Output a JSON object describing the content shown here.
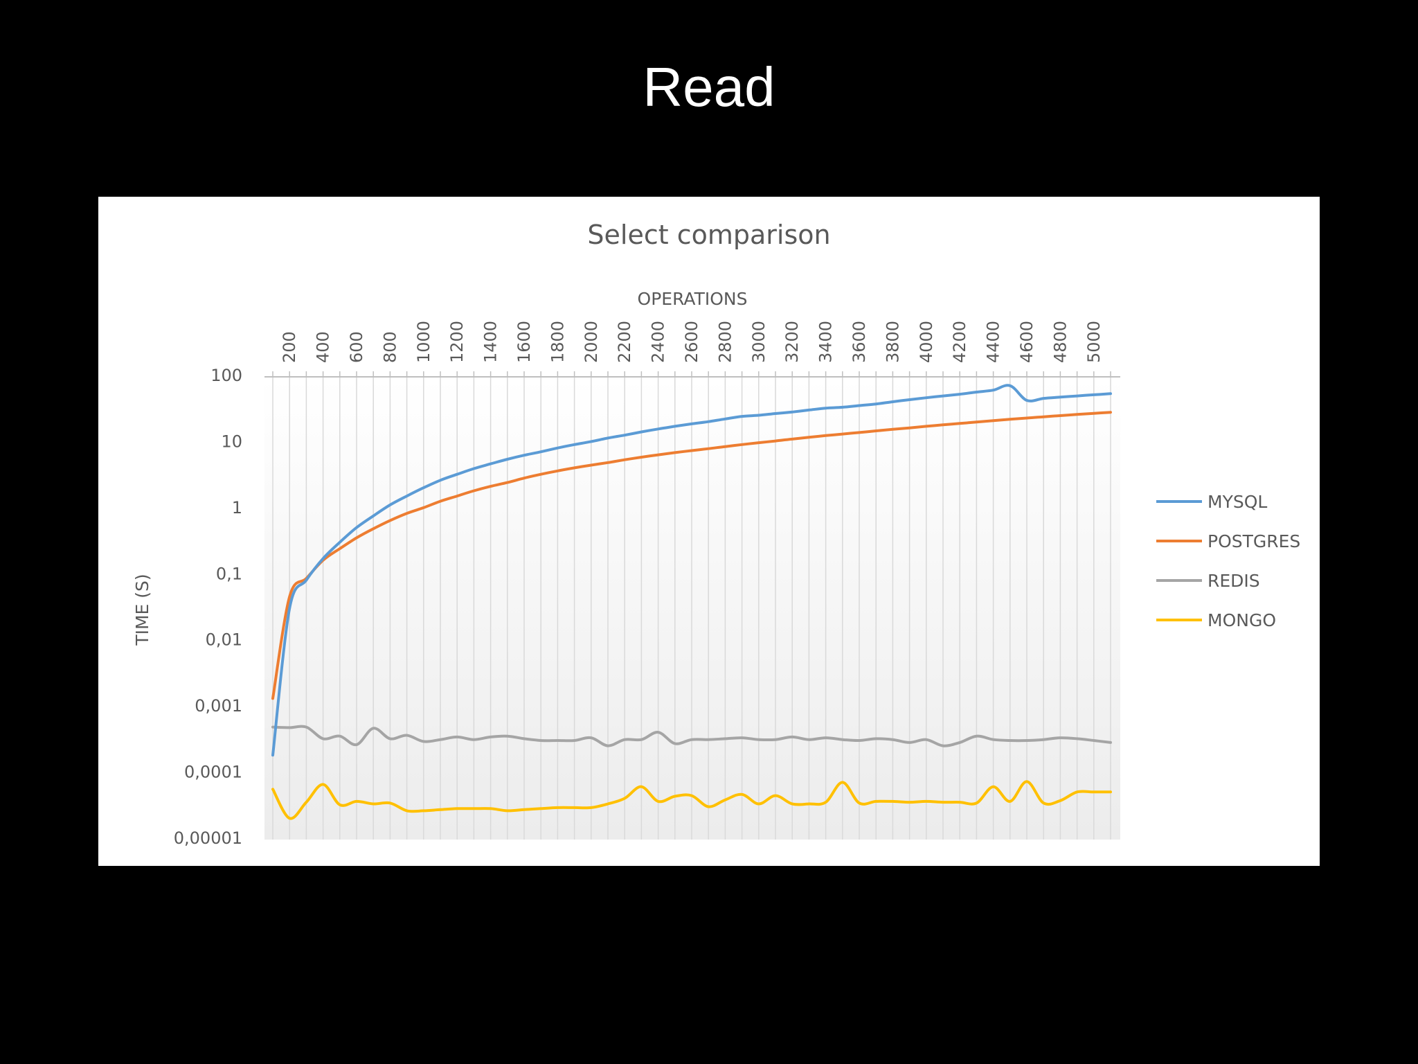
{
  "slide": {
    "title": "Read"
  },
  "chart_data": {
    "type": "line",
    "title": "Select comparison",
    "xlabel": "OPERATIONS",
    "ylabel": "TIME (S)",
    "x_axis_position": "top",
    "y_scale": "log",
    "ylim": [
      1e-05,
      100
    ],
    "grid": "vertical",
    "legend_position": "right",
    "y_tick_labels": [
      "100",
      "10",
      "1",
      "0,1",
      "0,01",
      "0,001",
      "0,0001",
      "0,00001"
    ],
    "x_tick_labels": [
      "200",
      "400",
      "600",
      "800",
      "1000",
      "1200",
      "1400",
      "1600",
      "1800",
      "2000",
      "2200",
      "2400",
      "2600",
      "2800",
      "3000",
      "3200",
      "3400",
      "3600",
      "3800",
      "4000",
      "4200",
      "4400",
      "4600",
      "4800",
      "5000"
    ],
    "x": [
      100,
      200,
      300,
      400,
      500,
      600,
      700,
      800,
      900,
      1000,
      1100,
      1200,
      1300,
      1400,
      1500,
      1600,
      1700,
      1800,
      1900,
      2000,
      2100,
      2200,
      2300,
      2400,
      2500,
      2600,
      2700,
      2800,
      2900,
      3000,
      3100,
      3200,
      3300,
      3400,
      3500,
      3600,
      3700,
      3800,
      3900,
      4000,
      4100,
      4200,
      4300,
      4400,
      4500,
      4600,
      4700,
      4800,
      4900,
      5000,
      5100
    ],
    "series": [
      {
        "name": "MYSQL",
        "color": "#5B9BD5",
        "values": [
          0.00018,
          0.03,
          0.08,
          0.17,
          0.3,
          0.5,
          0.75,
          1.1,
          1.5,
          2.0,
          2.6,
          3.2,
          3.9,
          4.6,
          5.4,
          6.2,
          7.0,
          8.0,
          9.0,
          10.0,
          11.3,
          12.5,
          14,
          15.5,
          17,
          18.5,
          20,
          22,
          24,
          25,
          26.5,
          28,
          30,
          32,
          33,
          35,
          37,
          40,
          43,
          46,
          49,
          52,
          56,
          60,
          70,
          42,
          45,
          47,
          49,
          51,
          53
        ]
      },
      {
        "name": "POSTGRES",
        "color": "#ED7D31",
        "values": [
          0.0013,
          0.045,
          0.085,
          0.16,
          0.24,
          0.35,
          0.48,
          0.64,
          0.82,
          1.0,
          1.25,
          1.5,
          1.8,
          2.1,
          2.4,
          2.8,
          3.2,
          3.6,
          4.0,
          4.4,
          4.8,
          5.3,
          5.8,
          6.3,
          6.8,
          7.3,
          7.8,
          8.4,
          9.0,
          9.6,
          10.2,
          10.9,
          11.6,
          12.3,
          13,
          13.7,
          14.5,
          15.3,
          16.1,
          17,
          17.9,
          18.8,
          19.7,
          20.7,
          21.7,
          22.7,
          23.7,
          24.7,
          25.7,
          26.7,
          27.7
        ]
      },
      {
        "name": "REDIS",
        "color": "#A5A5A5",
        "values": [
          0.00048,
          0.00047,
          0.00048,
          0.00032,
          0.00035,
          0.00026,
          0.00046,
          0.00032,
          0.00036,
          0.00029,
          0.00031,
          0.00034,
          0.00031,
          0.00034,
          0.00035,
          0.00032,
          0.0003,
          0.0003,
          0.0003,
          0.00033,
          0.00025,
          0.00031,
          0.00031,
          0.0004,
          0.00027,
          0.00031,
          0.00031,
          0.00032,
          0.00033,
          0.00031,
          0.00031,
          0.00034,
          0.00031,
          0.00033,
          0.00031,
          0.0003,
          0.00032,
          0.00031,
          0.00028,
          0.00031,
          0.00025,
          0.00028,
          0.00035,
          0.00031,
          0.0003,
          0.0003,
          0.00031,
          0.00033,
          0.00032,
          0.0003,
          0.00028
        ]
      },
      {
        "name": "MONGO",
        "color": "#FFC000",
        "values": [
          5.5e-05,
          2e-05,
          3.5e-05,
          6.5e-05,
          3.2e-05,
          3.6e-05,
          3.3e-05,
          3.4e-05,
          2.6e-05,
          2.6e-05,
          2.7e-05,
          2.8e-05,
          2.8e-05,
          2.8e-05,
          2.6e-05,
          2.7e-05,
          2.8e-05,
          2.9e-05,
          2.9e-05,
          2.9e-05,
          3.3e-05,
          4e-05,
          6e-05,
          3.6e-05,
          4.3e-05,
          4.4e-05,
          3e-05,
          3.8e-05,
          4.6e-05,
          3.3e-05,
          4.4e-05,
          3.3e-05,
          3.3e-05,
          3.5e-05,
          7e-05,
          3.4e-05,
          3.6e-05,
          3.6e-05,
          3.5e-05,
          3.6e-05,
          3.5e-05,
          3.5e-05,
          3.4e-05,
          6e-05,
          3.6e-05,
          7.2e-05,
          3.4e-05,
          3.7e-05,
          5e-05,
          5e-05,
          5e-05
        ]
      }
    ]
  }
}
